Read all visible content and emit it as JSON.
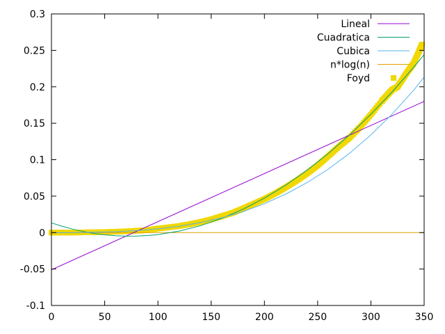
{
  "chart_data": {
    "type": "line",
    "title": "",
    "xlabel": "",
    "ylabel": "",
    "xlim": [
      0,
      350
    ],
    "ylim": [
      -0.1,
      0.3
    ],
    "xticks": [
      "0",
      "50",
      "100",
      "150",
      "200",
      "250",
      "300",
      "350"
    ],
    "yticks": [
      "-0.1",
      "-0.05",
      "0",
      "0.05",
      "0.1",
      "0.15",
      "0.2",
      "0.25",
      "0.3"
    ],
    "grid": false,
    "legend_position": "top-right",
    "series": [
      {
        "name": "Lineal",
        "color": "#9400d3",
        "style": "line",
        "x": [
          0,
          350
        ],
        "y": [
          -0.051,
          0.18
        ]
      },
      {
        "name": "Cuadratica",
        "color": "#009e73",
        "style": "line",
        "x": [
          0,
          10,
          20,
          30,
          40,
          50,
          60,
          70,
          80,
          90,
          100,
          120,
          140,
          160,
          180,
          200,
          220,
          240,
          260,
          280,
          300,
          320,
          340,
          350
        ],
        "y": [
          0.0133,
          0.0087,
          0.0047,
          0.0014,
          -0.0012,
          -0.0031,
          -0.0043,
          -0.0049,
          -0.0048,
          -0.0041,
          -0.0027,
          0.0021,
          0.0095,
          0.0195,
          0.0321,
          0.0473,
          0.0651,
          0.0855,
          0.1085,
          0.1341,
          0.1623,
          0.1931,
          0.2265,
          0.2441
        ]
      },
      {
        "name": "Cubica",
        "color": "#56b4e9",
        "style": "line",
        "x": [
          0,
          20,
          40,
          60,
          80,
          100,
          120,
          140,
          160,
          180,
          200,
          220,
          240,
          260,
          280,
          300,
          320,
          340,
          350
        ],
        "y": [
          -0.0002,
          0.0,
          0.0004,
          0.0012,
          0.0027,
          0.0051,
          0.0087,
          0.0137,
          0.0203,
          0.0289,
          0.0396,
          0.0527,
          0.0685,
          0.0871,
          0.1089,
          0.134,
          0.1627,
          0.1952,
          0.213
        ]
      },
      {
        "name": "n*log(n)",
        "color": "#e69f00",
        "style": "line",
        "x": [
          0,
          350
        ],
        "y": [
          0.0,
          0.0
        ]
      },
      {
        "name": "Foyd",
        "color": "#f0d800",
        "style": "points",
        "x": [
          0,
          10,
          20,
          30,
          40,
          50,
          60,
          70,
          80,
          90,
          100,
          110,
          120,
          130,
          140,
          150,
          160,
          170,
          180,
          190,
          200,
          210,
          220,
          230,
          240,
          250,
          260,
          270,
          280,
          290,
          300,
          310,
          315,
          320,
          325,
          330,
          335,
          340,
          345,
          348
        ],
        "y": [
          0.0,
          0.0,
          0.0,
          0.0003,
          0.0005,
          0.0007,
          0.0012,
          0.0017,
          0.0025,
          0.0034,
          0.0055,
          0.0072,
          0.009,
          0.0115,
          0.0145,
          0.018,
          0.0225,
          0.027,
          0.033,
          0.0395,
          0.046,
          0.0535,
          0.062,
          0.071,
          0.081,
          0.092,
          0.105,
          0.118,
          0.13,
          0.145,
          0.162,
          0.18,
          0.188,
          0.196,
          0.2,
          0.211,
          0.222,
          0.232,
          0.248,
          0.258
        ]
      }
    ]
  }
}
